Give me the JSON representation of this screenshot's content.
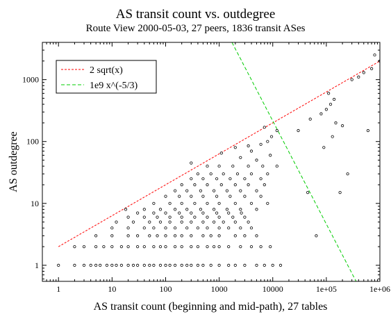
{
  "chart_data": {
    "type": "scatter",
    "title": "AS transit count vs. outdegree",
    "subtitle": "Route View 2000-05-03, 27 peers, 1836 transit ASes",
    "xlabel": "AS transit count (beginning and mid-path), 27 tables",
    "ylabel": "AS outdegree",
    "xscale": "log",
    "yscale": "log",
    "xlim": [
      0.5,
      1000000
    ],
    "ylim": [
      0.55,
      4000
    ],
    "x_ticks": [
      1,
      10,
      100,
      1000,
      10000,
      100000,
      1000000
    ],
    "x_tick_labels": [
      "1",
      "10",
      "100",
      "1000",
      "10000",
      "1e+05",
      "1e+06"
    ],
    "y_ticks": [
      1,
      10,
      100,
      1000
    ],
    "y_tick_labels": [
      "1",
      "10",
      "100",
      "1000"
    ],
    "grid": false,
    "legend_position": "top-left",
    "series": [
      {
        "name": "2 sqrt(x)",
        "kind": "line",
        "style": "dashed",
        "color": "#ff0000",
        "x": [
          1,
          1000000
        ]
      },
      {
        "name": "1e9 x^(-5/3)",
        "kind": "line",
        "style": "dashed",
        "color": "#00cc00",
        "x": [
          1000,
          1000000
        ]
      },
      {
        "name": "",
        "kind": "points",
        "color": "#000000",
        "points": [
          [
            1,
            1
          ],
          [
            2,
            1
          ],
          [
            3,
            1
          ],
          [
            4,
            1
          ],
          [
            5,
            1
          ],
          [
            6,
            1
          ],
          [
            8,
            1
          ],
          [
            10,
            1
          ],
          [
            12,
            1
          ],
          [
            15,
            1
          ],
          [
            20,
            1
          ],
          [
            25,
            1
          ],
          [
            30,
            1
          ],
          [
            40,
            1
          ],
          [
            50,
            1
          ],
          [
            60,
            1
          ],
          [
            80,
            1
          ],
          [
            100,
            1
          ],
          [
            120,
            1
          ],
          [
            150,
            1
          ],
          [
            200,
            1
          ],
          [
            250,
            1
          ],
          [
            300,
            1
          ],
          [
            400,
            1
          ],
          [
            500,
            1
          ],
          [
            700,
            1
          ],
          [
            1000,
            1
          ],
          [
            1500,
            1
          ],
          [
            2000,
            1
          ],
          [
            3000,
            1
          ],
          [
            5000,
            1
          ],
          [
            7000,
            1
          ],
          [
            10000,
            1
          ],
          [
            14000,
            1
          ],
          [
            2,
            2
          ],
          [
            3,
            2
          ],
          [
            5,
            2
          ],
          [
            7,
            2
          ],
          [
            10,
            2
          ],
          [
            15,
            2
          ],
          [
            20,
            2
          ],
          [
            30,
            2
          ],
          [
            40,
            2
          ],
          [
            60,
            2
          ],
          [
            80,
            2
          ],
          [
            100,
            2
          ],
          [
            150,
            2
          ],
          [
            200,
            2
          ],
          [
            300,
            2
          ],
          [
            400,
            2
          ],
          [
            600,
            2
          ],
          [
            800,
            2
          ],
          [
            1000,
            2
          ],
          [
            1500,
            2
          ],
          [
            2500,
            2
          ],
          [
            4000,
            2
          ],
          [
            6000,
            2
          ],
          [
            9000,
            2
          ],
          [
            5,
            3
          ],
          [
            10,
            3
          ],
          [
            20,
            3
          ],
          [
            30,
            3
          ],
          [
            50,
            3
          ],
          [
            70,
            3
          ],
          [
            100,
            3
          ],
          [
            150,
            3
          ],
          [
            200,
            3
          ],
          [
            300,
            3
          ],
          [
            500,
            3
          ],
          [
            700,
            3
          ],
          [
            1000,
            3
          ],
          [
            2000,
            3
          ],
          [
            3000,
            3
          ],
          [
            5000,
            3
          ],
          [
            65000,
            3
          ],
          [
            10,
            4
          ],
          [
            20,
            4
          ],
          [
            40,
            4
          ],
          [
            60,
            4
          ],
          [
            100,
            4
          ],
          [
            150,
            4
          ],
          [
            250,
            4
          ],
          [
            400,
            4
          ],
          [
            600,
            4
          ],
          [
            1000,
            4
          ],
          [
            1500,
            4
          ],
          [
            2500,
            4
          ],
          [
            4000,
            4
          ],
          [
            12,
            5
          ],
          [
            25,
            5
          ],
          [
            50,
            5
          ],
          [
            80,
            5
          ],
          [
            120,
            5
          ],
          [
            200,
            5
          ],
          [
            300,
            5
          ],
          [
            500,
            5
          ],
          [
            800,
            5
          ],
          [
            1200,
            5
          ],
          [
            2000,
            5
          ],
          [
            3500,
            5
          ],
          [
            20,
            6
          ],
          [
            40,
            6
          ],
          [
            70,
            6
          ],
          [
            120,
            6
          ],
          [
            200,
            6
          ],
          [
            350,
            6
          ],
          [
            600,
            6
          ],
          [
            1000,
            6
          ],
          [
            1800,
            6
          ],
          [
            3000,
            6
          ],
          [
            30,
            7
          ],
          [
            60,
            7
          ],
          [
            100,
            7
          ],
          [
            180,
            7
          ],
          [
            300,
            7
          ],
          [
            500,
            7
          ],
          [
            900,
            7
          ],
          [
            1500,
            7
          ],
          [
            2600,
            7
          ],
          [
            40,
            8
          ],
          [
            80,
            8
          ],
          [
            150,
            8
          ],
          [
            250,
            8
          ],
          [
            450,
            8
          ],
          [
            800,
            8
          ],
          [
            1400,
            8
          ],
          [
            2500,
            8
          ],
          [
            5000,
            8
          ],
          [
            18,
            8
          ],
          [
            60,
            10
          ],
          [
            120,
            10
          ],
          [
            200,
            10
          ],
          [
            350,
            10
          ],
          [
            600,
            10
          ],
          [
            1000,
            10
          ],
          [
            2000,
            10
          ],
          [
            4000,
            10
          ],
          [
            8000,
            10
          ],
          [
            100,
            13
          ],
          [
            180,
            13
          ],
          [
            300,
            13
          ],
          [
            500,
            13
          ],
          [
            900,
            13
          ],
          [
            1600,
            13
          ],
          [
            3000,
            13
          ],
          [
            6000,
            13
          ],
          [
            150,
            16
          ],
          [
            250,
            16
          ],
          [
            450,
            16
          ],
          [
            800,
            16
          ],
          [
            1400,
            16
          ],
          [
            2500,
            16
          ],
          [
            5000,
            16
          ],
          [
            200,
            20
          ],
          [
            350,
            20
          ],
          [
            600,
            20
          ],
          [
            1100,
            20
          ],
          [
            2000,
            20
          ],
          [
            3500,
            20
          ],
          [
            7000,
            20
          ],
          [
            300,
            25
          ],
          [
            500,
            25
          ],
          [
            900,
            25
          ],
          [
            1600,
            25
          ],
          [
            3000,
            25
          ],
          [
            6000,
            25
          ],
          [
            400,
            30
          ],
          [
            700,
            30
          ],
          [
            1200,
            30
          ],
          [
            2200,
            30
          ],
          [
            4000,
            30
          ],
          [
            8000,
            30
          ],
          [
            600,
            40
          ],
          [
            1000,
            40
          ],
          [
            1800,
            40
          ],
          [
            3500,
            40
          ],
          [
            6500,
            40
          ],
          [
            12000,
            40
          ],
          [
            1100,
            65
          ],
          [
            2500,
            55
          ],
          [
            5000,
            50
          ],
          [
            9000,
            60
          ],
          [
            4000,
            70
          ],
          [
            2000,
            80
          ],
          [
            3500,
            85
          ],
          [
            6000,
            90
          ],
          [
            8000,
            100
          ],
          [
            9500,
            120
          ],
          [
            12000,
            150
          ],
          [
            300,
            45
          ],
          [
            7000,
            170
          ],
          [
            30000,
            150
          ],
          [
            50000,
            230
          ],
          [
            80000,
            280
          ],
          [
            100000,
            330
          ],
          [
            120000,
            400
          ],
          [
            110000,
            600
          ],
          [
            150000,
            200
          ],
          [
            90000,
            80
          ],
          [
            130000,
            120
          ],
          [
            200000,
            180
          ],
          [
            180000,
            15
          ],
          [
            250000,
            30
          ],
          [
            45000,
            15
          ],
          [
            140000,
            480
          ],
          [
            300000,
            1000
          ],
          [
            400000,
            1100
          ],
          [
            500000,
            1300
          ],
          [
            600000,
            150
          ],
          [
            700000,
            1500
          ],
          [
            800000,
            2500
          ],
          [
            1000000,
            2000
          ]
        ]
      }
    ]
  }
}
